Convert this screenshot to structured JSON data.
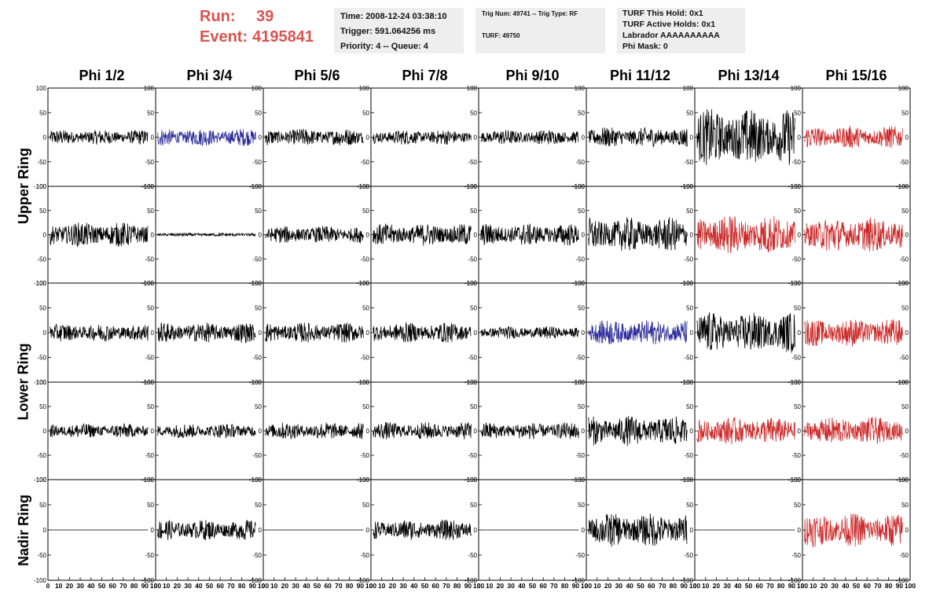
{
  "header": {
    "run_label": "Run:",
    "run_value": "39",
    "event_label": "Event:",
    "event_value": "4195841",
    "time": "Time: 2008-12-24 03:38:10",
    "trigger": "Trigger: 591.064256 ms",
    "priority": "Priority: 4 -- Queue: 4",
    "trig_num": "Trig Num: 49741 -- Trig Type: RF",
    "turf": "TURF: 49750",
    "turf_hold": "TURF This Hold: 0x1",
    "turf_active": "TURF Active Holds: 0x1",
    "labrador": "Labrador AAAAAAAAAA",
    "phi_mask": "Phi Mask: 0"
  },
  "columns": [
    "Phi 1/2",
    "Phi 3/4",
    "Phi 5/6",
    "Phi 7/8",
    "Phi 9/10",
    "Phi 11/12",
    "Phi 13/14",
    "Phi 15/16"
  ],
  "row_labels": {
    "upper": "Upper Ring",
    "lower": "Lower Ring",
    "nadir": "Nadir Ring"
  },
  "colors": {
    "black": "#000000",
    "blue": "#2b2b9a",
    "red": "#cc2a2a",
    "header_red": "#d9534f",
    "info_bg": "#eeeeee"
  },
  "chart_data": {
    "type": "line",
    "xlim": [
      0,
      100
    ],
    "ylim": [
      -100,
      100
    ],
    "y_ticks": [
      "-100",
      "-50",
      "0",
      "50",
      "100"
    ],
    "x_ticks": [
      "0",
      "10",
      "20",
      "30",
      "40",
      "50",
      "60",
      "70",
      "80",
      "90",
      "100"
    ],
    "panel_amplitude": [
      [
        12,
        14,
        14,
        12,
        12,
        16,
        45,
        18
      ],
      [
        20,
        3,
        14,
        18,
        18,
        28,
        32,
        28
      ],
      [
        14,
        16,
        16,
        16,
        10,
        20,
        32,
        22
      ],
      [
        12,
        12,
        14,
        14,
        14,
        24,
        22,
        22
      ],
      [
        0,
        16,
        0,
        16,
        0,
        26,
        0,
        26
      ]
    ],
    "panel_color": [
      [
        "black",
        "blue",
        "black",
        "black",
        "black",
        "black",
        "black",
        "red"
      ],
      [
        "black",
        "black",
        "black",
        "black",
        "black",
        "black",
        "red",
        "red"
      ],
      [
        "black",
        "black",
        "black",
        "black",
        "black",
        "blue",
        "black",
        "red"
      ],
      [
        "black",
        "black",
        "black",
        "black",
        "black",
        "black",
        "red",
        "red"
      ],
      [
        "black",
        "black",
        "black",
        "black",
        "black",
        "black",
        "black",
        "red"
      ]
    ]
  }
}
